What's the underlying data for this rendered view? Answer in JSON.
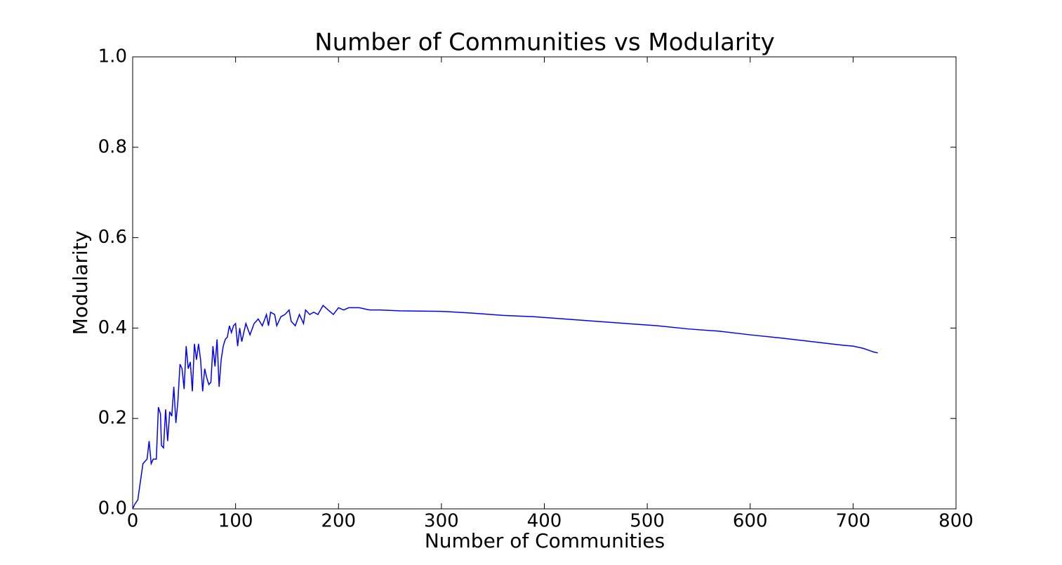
{
  "chart_data": {
    "type": "line",
    "title": "Number of Communities vs Modularity",
    "x_label": "Number of Communities",
    "y_label": "Modularity",
    "xlim": [
      0,
      800
    ],
    "xticks": [
      0,
      100,
      200,
      300,
      400,
      500,
      600,
      700,
      800
    ],
    "ylim": [
      0,
      1
    ],
    "yticks": [
      {
        "value": 0,
        "label": "0.0"
      },
      0.2,
      0.4,
      0.6,
      0.8,
      {
        "value": 1,
        "label": "1.0"
      }
    ],
    "series": [
      {
        "color": "#0000ff",
        "x": [
          0,
          2,
          5,
          10,
          14,
          16,
          18,
          20,
          23,
          25,
          27,
          28,
          30,
          32,
          34,
          36,
          38,
          40,
          42,
          44,
          46,
          48,
          50,
          52,
          54,
          56,
          58,
          60,
          62,
          64,
          66,
          68,
          70,
          72,
          74,
          76,
          78,
          80,
          82,
          84,
          86,
          88,
          90,
          92,
          94,
          96,
          98,
          100,
          102,
          104,
          106,
          110,
          114,
          118,
          122,
          126,
          130,
          132,
          134,
          138,
          140,
          144,
          148,
          152,
          154,
          158,
          162,
          166,
          168,
          172,
          176,
          180,
          185,
          190,
          195,
          200,
          205,
          210,
          220,
          230,
          240,
          260,
          300,
          330,
          360,
          390,
          420,
          450,
          480,
          510,
          540,
          570,
          600,
          630,
          660,
          690,
          700,
          710,
          720,
          724
        ],
        "values": [
          0,
          0.01,
          0.02,
          0.1,
          0.11,
          0.15,
          0.1,
          0.11,
          0.11,
          0.225,
          0.21,
          0.14,
          0.135,
          0.22,
          0.15,
          0.215,
          0.205,
          0.27,
          0.19,
          0.24,
          0.32,
          0.31,
          0.265,
          0.36,
          0.31,
          0.325,
          0.26,
          0.365,
          0.33,
          0.365,
          0.33,
          0.26,
          0.31,
          0.29,
          0.275,
          0.28,
          0.36,
          0.315,
          0.375,
          0.27,
          0.33,
          0.36,
          0.375,
          0.38,
          0.405,
          0.39,
          0.405,
          0.41,
          0.36,
          0.4,
          0.37,
          0.41,
          0.385,
          0.41,
          0.42,
          0.405,
          0.43,
          0.405,
          0.435,
          0.43,
          0.405,
          0.425,
          0.43,
          0.44,
          0.415,
          0.405,
          0.43,
          0.41,
          0.44,
          0.43,
          0.435,
          0.43,
          0.45,
          0.44,
          0.43,
          0.445,
          0.44,
          0.445,
          0.445,
          0.44,
          0.44,
          0.438,
          0.437,
          0.433,
          0.428,
          0.425,
          0.42,
          0.415,
          0.41,
          0.405,
          0.398,
          0.393,
          0.385,
          0.378,
          0.37,
          0.362,
          0.36,
          0.355,
          0.347,
          0.345
        ]
      }
    ]
  }
}
